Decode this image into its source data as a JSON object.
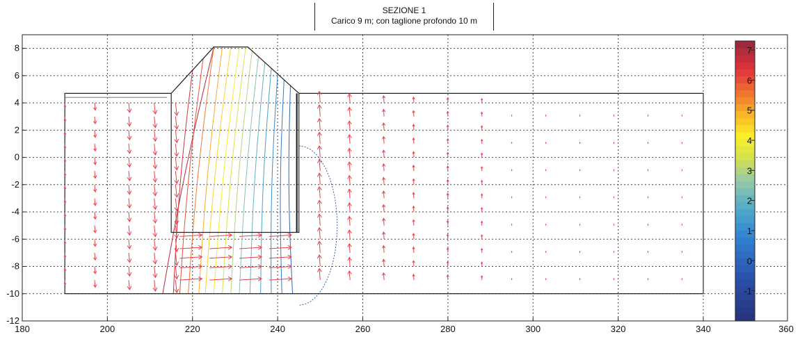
{
  "chart_data": {
    "type": "contour+vector",
    "title": "SEZIONE 1",
    "subtitle": "Carico 9 m; con taglione profondo 10 m",
    "xlim": [
      180,
      340
    ],
    "ylim": [
      -12,
      9
    ],
    "x_ticks": [
      180,
      200,
      220,
      240,
      260,
      280,
      300,
      320,
      340
    ],
    "y_ticks": [
      -12,
      -10,
      -8,
      -6,
      -4,
      -2,
      0,
      2,
      4,
      6,
      8
    ],
    "grid": true,
    "colorbar": {
      "min": -2,
      "max": 7.3,
      "ticks": [
        -1,
        0,
        1,
        2,
        3,
        4,
        5,
        6,
        7
      ],
      "extra_tick_label": "360"
    },
    "domain_outline": [
      [
        190,
        -10
      ],
      [
        190,
        4.7
      ],
      [
        215,
        4.7
      ],
      [
        215,
        -5.5
      ],
      [
        245,
        -5.5
      ],
      [
        245,
        4.7
      ],
      [
        340,
        4.7
      ],
      [
        340,
        -10
      ],
      [
        190,
        -10
      ]
    ],
    "embankment": [
      [
        215,
        4.7
      ],
      [
        225,
        8.1
      ],
      [
        233,
        8.1
      ],
      [
        245,
        4.7
      ]
    ],
    "cutoff_wall": [
      [
        244.5,
        4.7
      ],
      [
        244.5,
        -5.5
      ]
    ],
    "head_contours": [
      {
        "level": 7.0,
        "top_x": 225.0,
        "bottom_x": 213.0
      },
      {
        "level": 6.5,
        "top_x": 220.0,
        "bottom_x": 215.5
      },
      {
        "level": 6.0,
        "top_x": 222.5,
        "bottom_x": 217.0
      },
      {
        "level": 5.5,
        "top_x": 225.0,
        "bottom_x": 219.0
      },
      {
        "level": 5.0,
        "top_x": 227.0,
        "bottom_x": 221.5
      },
      {
        "level": 4.5,
        "top_x": 229.0,
        "bottom_x": 223.0
      },
      {
        "level": 4.0,
        "top_x": 231.0,
        "bottom_x": 225.0
      },
      {
        "level": 3.5,
        "top_x": 232.5,
        "bottom_x": 227.0
      },
      {
        "level": 3.0,
        "top_x": 234.0,
        "bottom_x": 229.0
      },
      {
        "level": 2.5,
        "top_x": 235.5,
        "bottom_x": 231.0
      },
      {
        "level": 2.0,
        "top_x": 237.0,
        "bottom_x": 233.5
      },
      {
        "level": 1.5,
        "top_x": 238.5,
        "bottom_x": 236.0
      },
      {
        "level": 1.0,
        "top_x": 240.0,
        "bottom_x": 238.5
      },
      {
        "level": 0.5,
        "top_x": 241.5,
        "bottom_x": 241.0
      },
      {
        "level": 0.0,
        "top_x": 243.0,
        "bottom_x": 243.5
      }
    ],
    "vector_columns": [
      {
        "x": 190,
        "magnitude": 0.2
      },
      {
        "x": 197,
        "magnitude": 0.45
      },
      {
        "x": 205,
        "magnitude": 0.7
      },
      {
        "x": 211,
        "magnitude": 0.85
      },
      {
        "x": 216,
        "magnitude": 1.0
      },
      {
        "x": 250,
        "magnitude": 0.9
      },
      {
        "x": 257,
        "magnitude": 0.65
      },
      {
        "x": 265,
        "magnitude": 0.45
      },
      {
        "x": 272,
        "magnitude": 0.3
      },
      {
        "x": 280,
        "magnitude": 0.22
      },
      {
        "x": 288,
        "magnitude": 0.15
      }
    ],
    "horizontal_flow_rows": [
      -5.8,
      -6.7,
      -7.4,
      -8.1,
      -9.0
    ]
  },
  "colors": {
    "axis": "#222222",
    "grid": "#444444",
    "outline": "#222222",
    "vectors": "#e8404a",
    "blue_line": "#3a5fa8"
  }
}
